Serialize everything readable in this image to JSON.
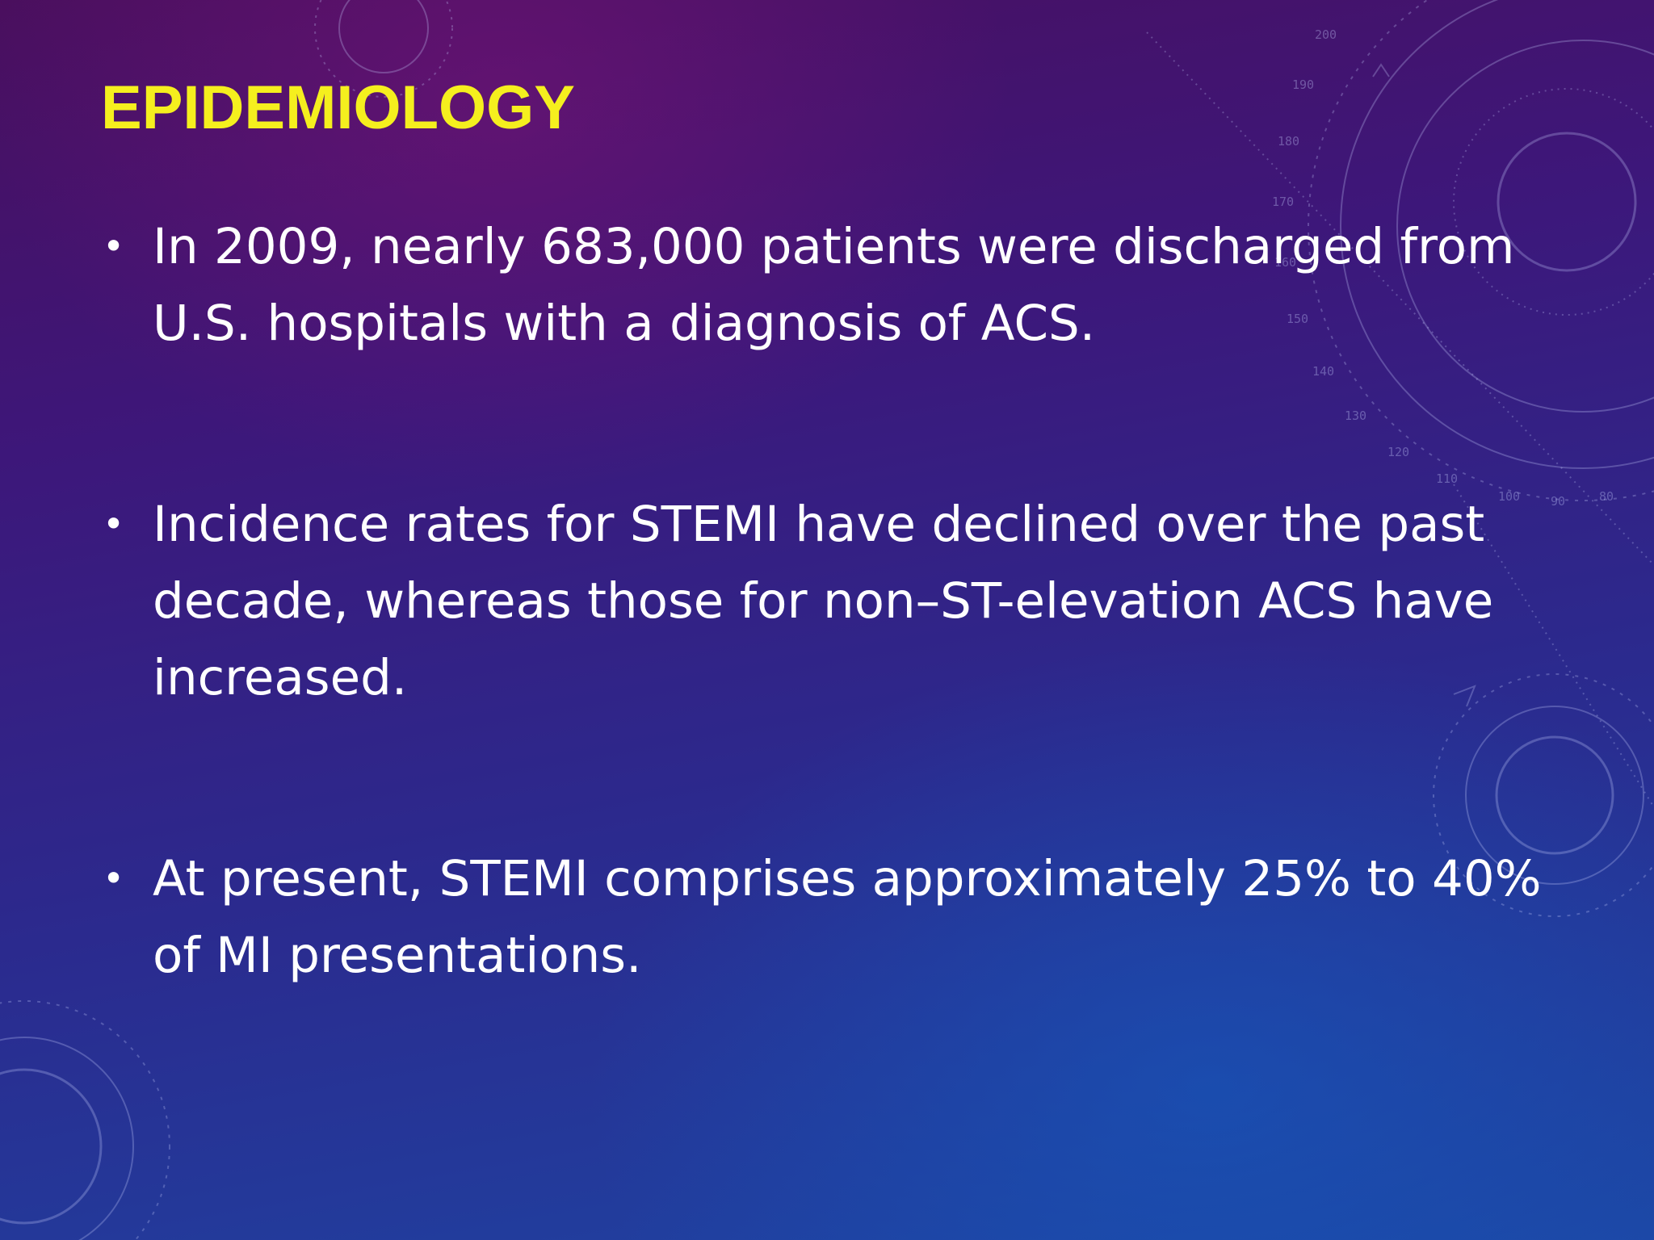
{
  "slide": {
    "title": "EPIDEMIOLOGY",
    "bullets": [
      {
        "text": "In 2009, nearly 683,000 patients were discharged from U.S. hospitals with a diagnosis of ACS."
      },
      {
        "text": "Incidence rates for STEMI have declined over the past decade, whereas those for non–ST-elevation ACS have increased."
      },
      {
        "text": "At present, STEMI comprises approximately 25% to 40% of MI presentations."
      }
    ],
    "dial_numbers": [
      "80",
      "90",
      "100",
      "110",
      "120",
      "130",
      "140",
      "150",
      "160",
      "170",
      "180",
      "190",
      "200"
    ]
  },
  "colors": {
    "title": "#f5ef1e",
    "text": "#ffffff",
    "background_top": "#4a0f5e",
    "background_bottom": "#1d46a4"
  }
}
